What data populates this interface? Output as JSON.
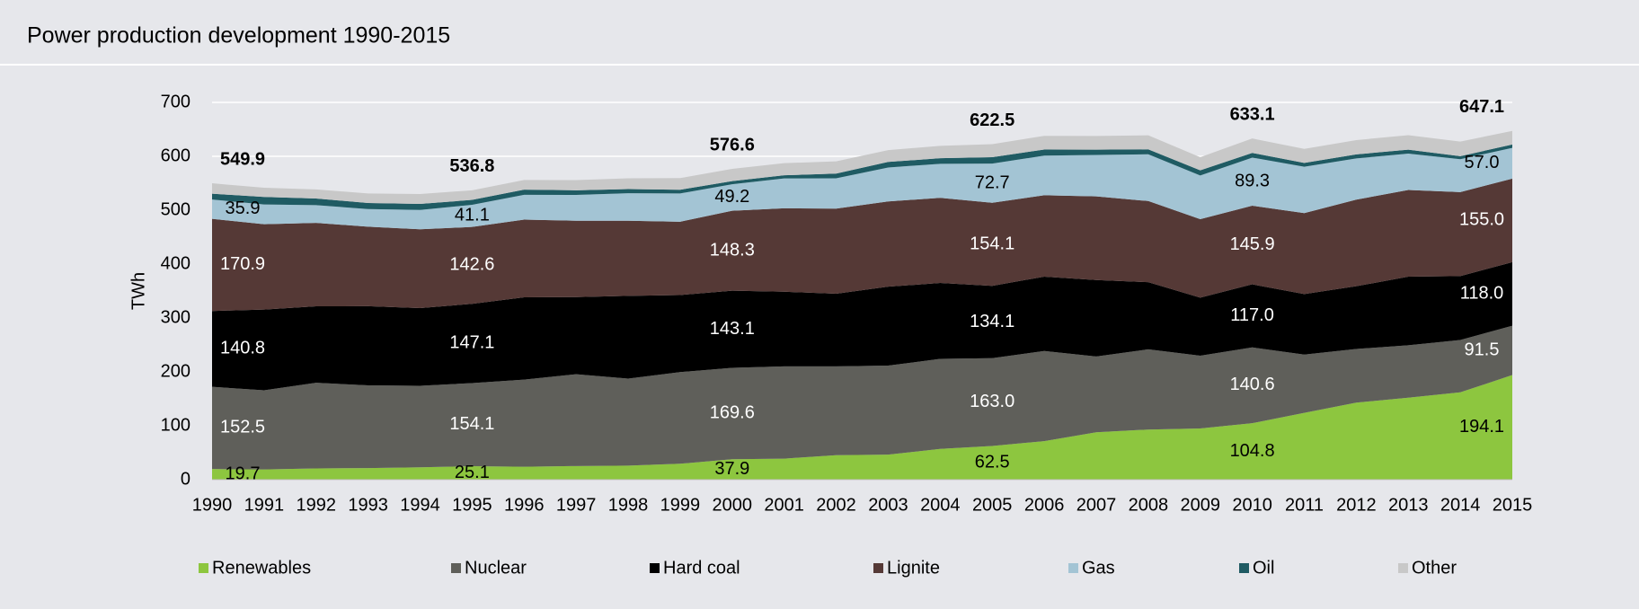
{
  "chart_data": {
    "type": "stacked_area",
    "title": "Power production development 1990-2015",
    "ylabel": "TWh",
    "x": [
      1990,
      1991,
      1992,
      1993,
      1994,
      1995,
      1996,
      1997,
      1998,
      1999,
      2000,
      2001,
      2002,
      2003,
      2004,
      2005,
      2006,
      2007,
      2008,
      2009,
      2010,
      2011,
      2012,
      2013,
      2014,
      2015
    ],
    "xlim": [
      1990,
      2015
    ],
    "ylim": [
      0,
      700
    ],
    "yticks": [
      0,
      100,
      200,
      300,
      400,
      500,
      600,
      700
    ],
    "grid": true,
    "legend": "bottom",
    "series": [
      {
        "name": "Renewables",
        "color": "#8dc63f",
        "values": [
          19.7,
          18.9,
          20.9,
          21.5,
          22.9,
          25.1,
          24,
          25.3,
          26,
          29.5,
          37.9,
          39,
          45.5,
          46.5,
          57,
          62.5,
          71.5,
          88,
          93,
          95,
          104.8,
          124,
          143,
          152,
          162,
          194.1
        ],
        "value_labels": [
          "19.7",
          null,
          null,
          null,
          null,
          "25.1",
          null,
          null,
          null,
          null,
          "37.9",
          null,
          null,
          null,
          null,
          "62.5",
          null,
          null,
          null,
          null,
          "104.8",
          null,
          null,
          null,
          null,
          "194.1"
        ]
      },
      {
        "name": "Nuclear",
        "color": "#5f5f5a",
        "values": [
          152.5,
          147,
          158.8,
          153.5,
          151.2,
          154.1,
          161.6,
          170.3,
          161.6,
          170,
          169.6,
          171.3,
          164.8,
          165.1,
          167.1,
          163.0,
          167.3,
          140.5,
          148.8,
          134.9,
          140.6,
          108,
          99.5,
          97.3,
          97.1,
          91.5
        ],
        "value_labels": [
          "152.5",
          null,
          null,
          null,
          null,
          "154.1",
          null,
          null,
          null,
          null,
          "169.6",
          null,
          null,
          null,
          null,
          "163.0",
          null,
          null,
          null,
          null,
          "140.6",
          null,
          null,
          null,
          null,
          "91.5"
        ]
      },
      {
        "name": "Hard coal",
        "color": "#000000",
        "values": [
          140.8,
          149.8,
          141.9,
          146.8,
          144.3,
          147.1,
          152.7,
          143.1,
          153.4,
          143.1,
          143.1,
          138.4,
          134.6,
          146.5,
          140.8,
          134.1,
          137.9,
          142.0,
          124.6,
          107.9,
          117.0,
          112.4,
          116.4,
          127.3,
          118.6,
          118.0
        ],
        "value_labels": [
          "140.8",
          null,
          null,
          null,
          null,
          "147.1",
          null,
          null,
          null,
          null,
          "143.1",
          null,
          null,
          null,
          null,
          "134.1",
          null,
          null,
          null,
          null,
          "117.0",
          null,
          null,
          null,
          null,
          "118.0"
        ]
      },
      {
        "name": "Lignite",
        "color": "#553936",
        "values": [
          170.9,
          158.3,
          154.8,
          147.6,
          146.1,
          142.6,
          144.3,
          141.7,
          139.4,
          136,
          148.3,
          154.8,
          158,
          158.2,
          158,
          154.1,
          151.1,
          155.1,
          150.6,
          145.6,
          145.9,
          150.1,
          160.7,
          160.9,
          155.8,
          155.0
        ],
        "value_labels": [
          "170.9",
          null,
          null,
          null,
          null,
          "142.6",
          null,
          null,
          null,
          null,
          "148.3",
          null,
          null,
          null,
          null,
          "154.1",
          null,
          null,
          null,
          null,
          "145.9",
          null,
          null,
          null,
          null,
          "155.0"
        ]
      },
      {
        "name": "Gas",
        "color": "#a3c4d4",
        "values": [
          35.9,
          36.6,
          33,
          32.6,
          35.9,
          41.1,
          46,
          48,
          51,
          52.5,
          49.2,
          55.5,
          56.3,
          62.9,
          63.2,
          72.7,
          73.4,
          77,
          86.7,
          80.9,
          89.3,
          86.1,
          76.4,
          67.5,
          61.1,
          57.0
        ],
        "value_labels": [
          "35.9",
          null,
          null,
          null,
          null,
          "41.1",
          null,
          null,
          null,
          null,
          "49.2",
          null,
          null,
          null,
          null,
          "72.7",
          null,
          null,
          null,
          null,
          "89.3",
          null,
          null,
          null,
          null,
          "57.0"
        ]
      },
      {
        "name": "Oil",
        "color": "#1f5b63",
        "values": [
          10.8,
          14,
          12.2,
          11.4,
          11.2,
          9.1,
          9.5,
          8.5,
          7.8,
          6.9,
          5.9,
          5.7,
          8.7,
          10.3,
          10.3,
          12.0,
          11.3,
          9.6,
          9.2,
          9.6,
          8.7,
          7.2,
          7.6,
          7.2,
          5.7,
          6.2
        ]
      },
      {
        "name": "Other",
        "color": "#c8c8c8",
        "values": [
          19.3,
          17,
          17,
          17.7,
          18.5,
          17.7,
          18,
          19,
          20,
          21.5,
          22.6,
          22.5,
          22.8,
          22,
          23,
          24.1,
          25.5,
          25.5,
          26,
          24.5,
          26.8,
          26,
          26.5,
          27,
          27,
          25.3
        ]
      }
    ],
    "totals": [
      549.9,
      null,
      null,
      null,
      null,
      536.8,
      null,
      null,
      null,
      null,
      576.6,
      null,
      null,
      null,
      null,
      622.5,
      null,
      null,
      null,
      null,
      633.1,
      null,
      null,
      null,
      null,
      647.1
    ]
  }
}
